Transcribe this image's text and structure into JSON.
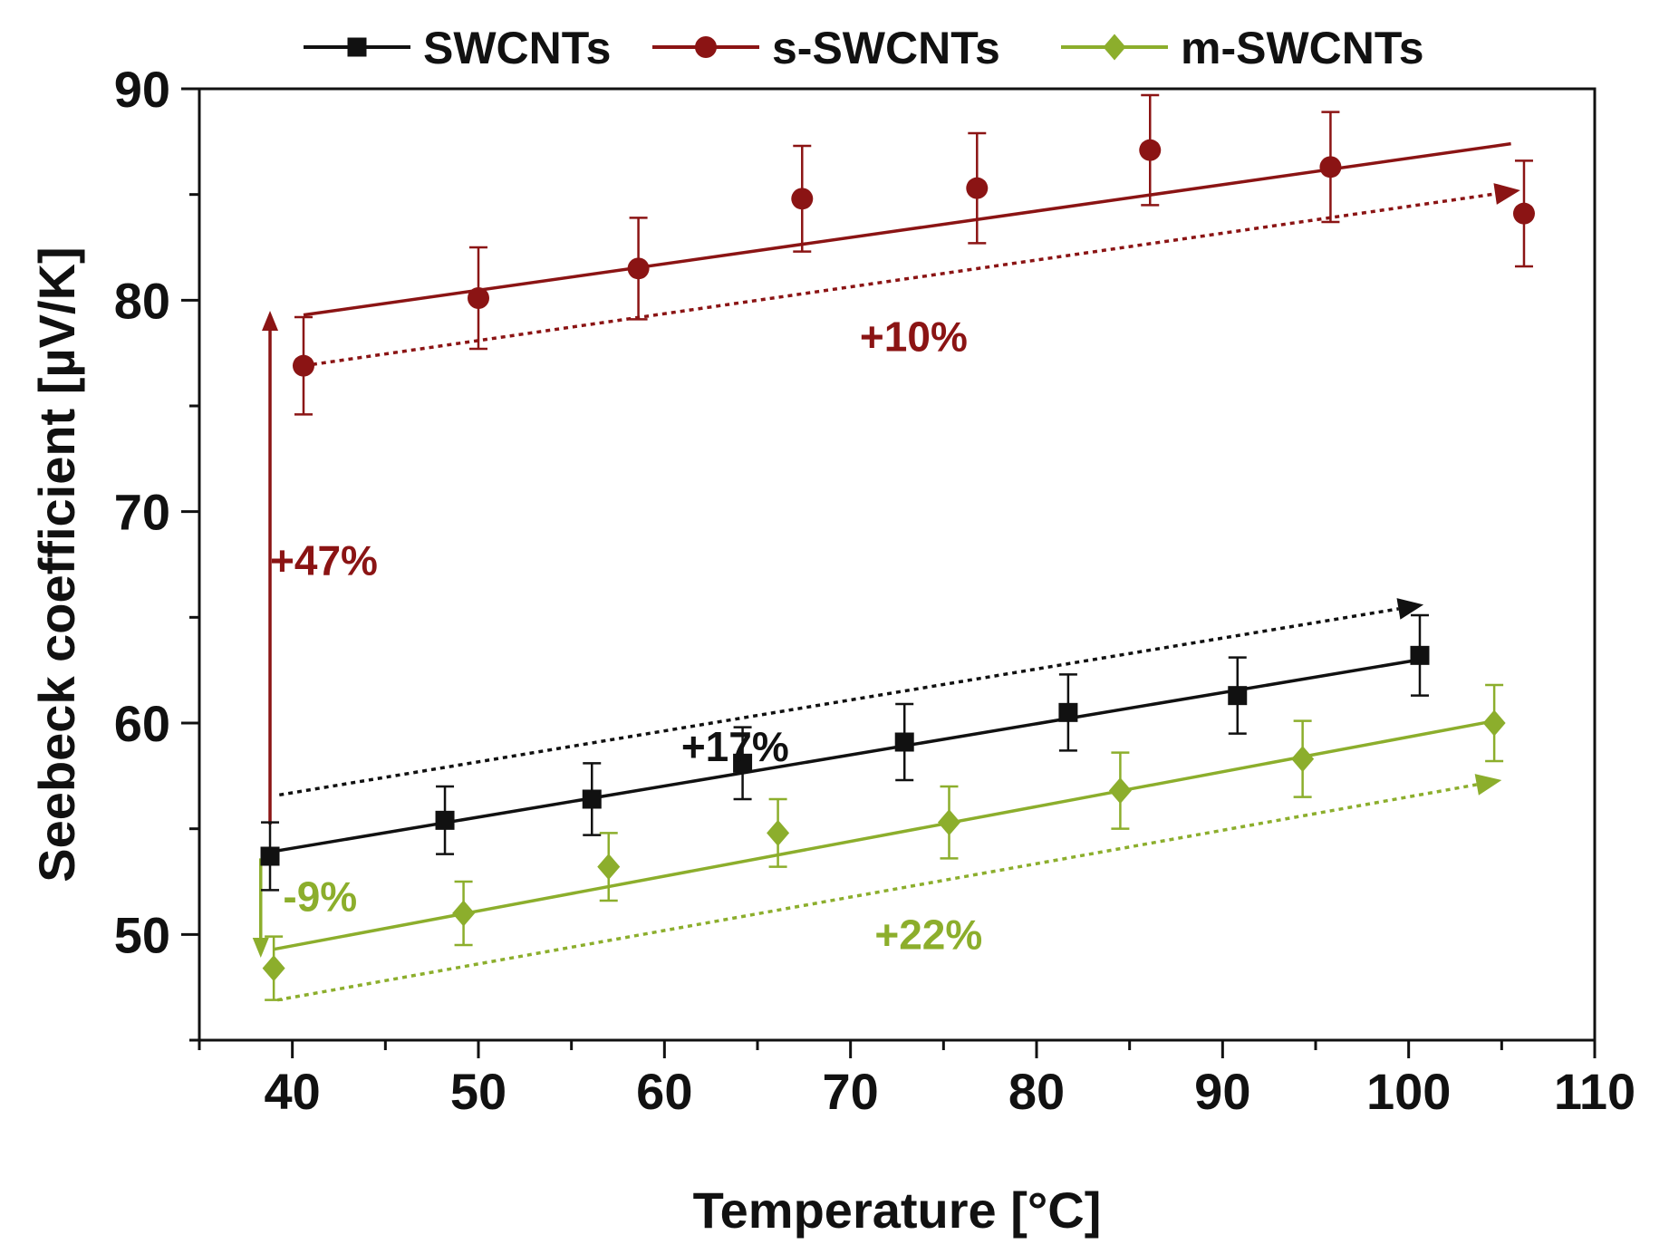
{
  "chart_data": {
    "type": "scatter",
    "xlabel": "Temperature [°C]",
    "ylabel": "Seebeck coefficient [µV/K]",
    "xlim": [
      35,
      110
    ],
    "ylim": [
      45,
      90
    ],
    "xticks": [
      40,
      50,
      60,
      70,
      80,
      90,
      100,
      110
    ],
    "yticks": [
      50,
      60,
      70,
      80,
      90
    ],
    "series": [
      {
        "name": "SWCNTs",
        "color": "#111111",
        "marker": "square",
        "x": [
          38.8,
          48.2,
          56.1,
          64.2,
          72.9,
          81.7,
          90.8,
          100.6
        ],
        "y": [
          53.7,
          55.4,
          56.4,
          58.1,
          59.1,
          60.5,
          61.3,
          63.2
        ],
        "err": [
          1.6,
          1.6,
          1.7,
          1.7,
          1.8,
          1.8,
          1.8,
          1.9
        ],
        "fit": {
          "x": [
            38.8,
            100.6
          ],
          "y": [
            53.9,
            63.0
          ]
        }
      },
      {
        "name": "s-SWCNTs",
        "color": "#8b1414",
        "marker": "circle",
        "x": [
          40.6,
          50.0,
          58.6,
          67.4,
          76.8,
          86.1,
          95.8,
          106.2
        ],
        "y": [
          76.9,
          80.1,
          81.5,
          84.8,
          85.3,
          87.1,
          86.3,
          84.1
        ],
        "err": [
          2.3,
          2.4,
          2.4,
          2.5,
          2.6,
          2.6,
          2.6,
          2.5
        ],
        "fit": {
          "x": [
            40.6,
            105.5
          ],
          "y": [
            79.3,
            87.4
          ]
        }
      },
      {
        "name": "m-SWCNTs",
        "color": "#8cae2c",
        "marker": "diamond",
        "x": [
          39.0,
          49.2,
          57.0,
          66.1,
          75.3,
          84.5,
          94.3,
          104.6
        ],
        "y": [
          48.4,
          51.0,
          53.2,
          54.8,
          55.3,
          56.8,
          58.3,
          60.0
        ],
        "err": [
          1.5,
          1.5,
          1.6,
          1.6,
          1.7,
          1.8,
          1.8,
          1.8
        ],
        "fit": {
          "x": [
            39.0,
            104.6
          ],
          "y": [
            49.3,
            60.1
          ]
        }
      }
    ],
    "annotations": [
      {
        "text": "+10%",
        "color": "#8b1414",
        "x": 70.5,
        "y": 77.6
      },
      {
        "text": "+47%",
        "color": "#8b1414",
        "x": 38.8,
        "y": 67.0
      },
      {
        "text": "+17%",
        "color": "#111111",
        "x": 60.9,
        "y": 58.2
      },
      {
        "text": "-9%",
        "color": "#8cae2c",
        "x": 39.5,
        "y": 51.1
      },
      {
        "text": "+22%",
        "color": "#8cae2c",
        "x": 71.3,
        "y": 49.3
      }
    ],
    "arrows": [
      {
        "name": "s-trend-arrow",
        "color": "#8b1414",
        "style": "dotted",
        "from": [
          40.6,
          76.9
        ],
        "to": [
          106.0,
          85.2
        ]
      },
      {
        "name": "s-jump-arrow",
        "color": "#8b1414",
        "style": "solid",
        "from": [
          38.8,
          55.2
        ],
        "to": [
          38.8,
          79.5
        ]
      },
      {
        "name": "sw-trend-arrow",
        "color": "#111111",
        "style": "dotted",
        "from": [
          39.3,
          56.6
        ],
        "to": [
          100.8,
          65.6
        ]
      },
      {
        "name": "m-drop-arrow",
        "color": "#8cae2c",
        "style": "solid",
        "from": [
          38.3,
          53.6
        ],
        "to": [
          38.3,
          48.9
        ]
      },
      {
        "name": "m-trend-arrow",
        "color": "#8cae2c",
        "style": "dotted",
        "from": [
          39.2,
          46.9
        ],
        "to": [
          105.0,
          57.3
        ]
      }
    ],
    "legend": "top"
  }
}
